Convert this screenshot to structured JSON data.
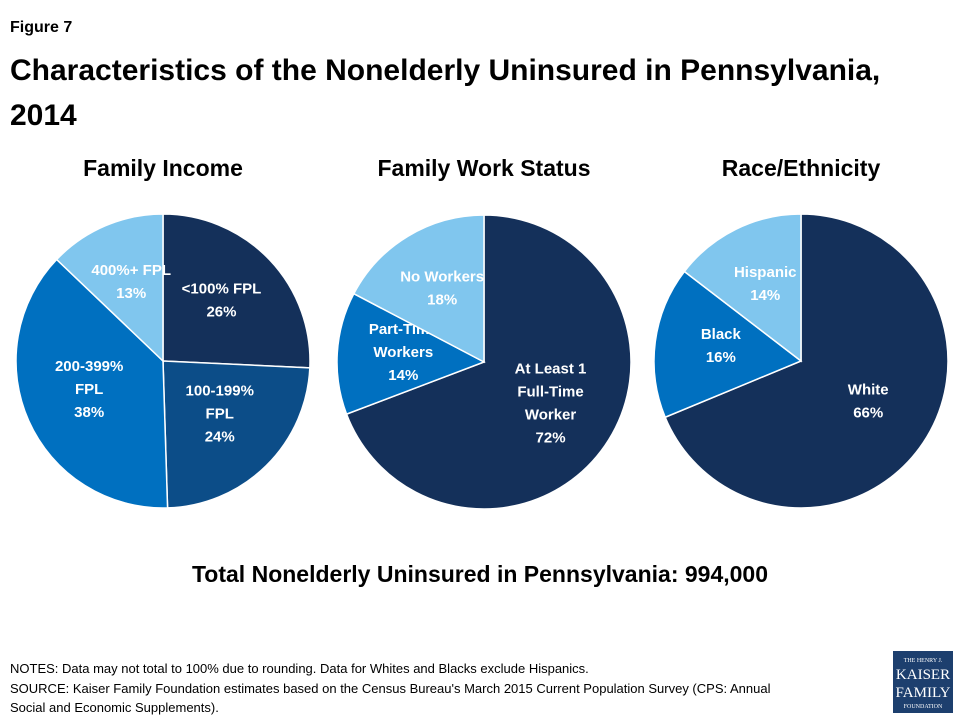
{
  "figure_label": "Figure 7",
  "title": [
    "Characteristics of the Nonelderly Uninsured in Pennsylvania,",
    "2014"
  ],
  "total": "Total Nonelderly Uninsured in Pennsylvania: 994,000",
  "notes": "NOTES: Data may not total to 100% due to rounding. Data for Whites and Blacks exclude Hispanics.",
  "source": [
    "SOURCE: Kaiser Family Foundation estimates based on the Census Bureau's March 2015 Current Population Survey (CPS: Annual",
    "Social and Economic Supplements)."
  ],
  "logo": [
    "THE HENRY J.",
    "KAISER",
    "FAMILY",
    "FOUNDATION"
  ],
  "chart_data": [
    {
      "type": "pie",
      "title": "Family Income",
      "categories": [
        "<100% FPL",
        "100-199% FPL",
        "200-399% FPL",
        "400%+ FPL"
      ],
      "values": [
        26,
        24,
        38,
        13
      ],
      "value_labels": [
        "26%",
        "24%",
        "38%",
        "13%"
      ],
      "colors": [
        "#14305a",
        "#0c4d88",
        "#0070c0",
        "#80c6ee"
      ]
    },
    {
      "type": "pie",
      "title": "Family Work Status",
      "categories": [
        "At Least 1 Full-Time Worker",
        "Part-Time Workers",
        "No Workers"
      ],
      "values": [
        72,
        14,
        18
      ],
      "value_labels": [
        "72%",
        "14%",
        "18%"
      ],
      "colors": [
        "#14305a",
        "#0070c0",
        "#80c6ee"
      ]
    },
    {
      "type": "pie",
      "title": "Race/Ethnicity",
      "categories": [
        "White",
        "Black",
        "Hispanic"
      ],
      "values": [
        66,
        16,
        14
      ],
      "value_labels": [
        "66%",
        "16%",
        "14%"
      ],
      "colors": [
        "#14305a",
        "#0070c0",
        "#80c6ee"
      ]
    }
  ]
}
